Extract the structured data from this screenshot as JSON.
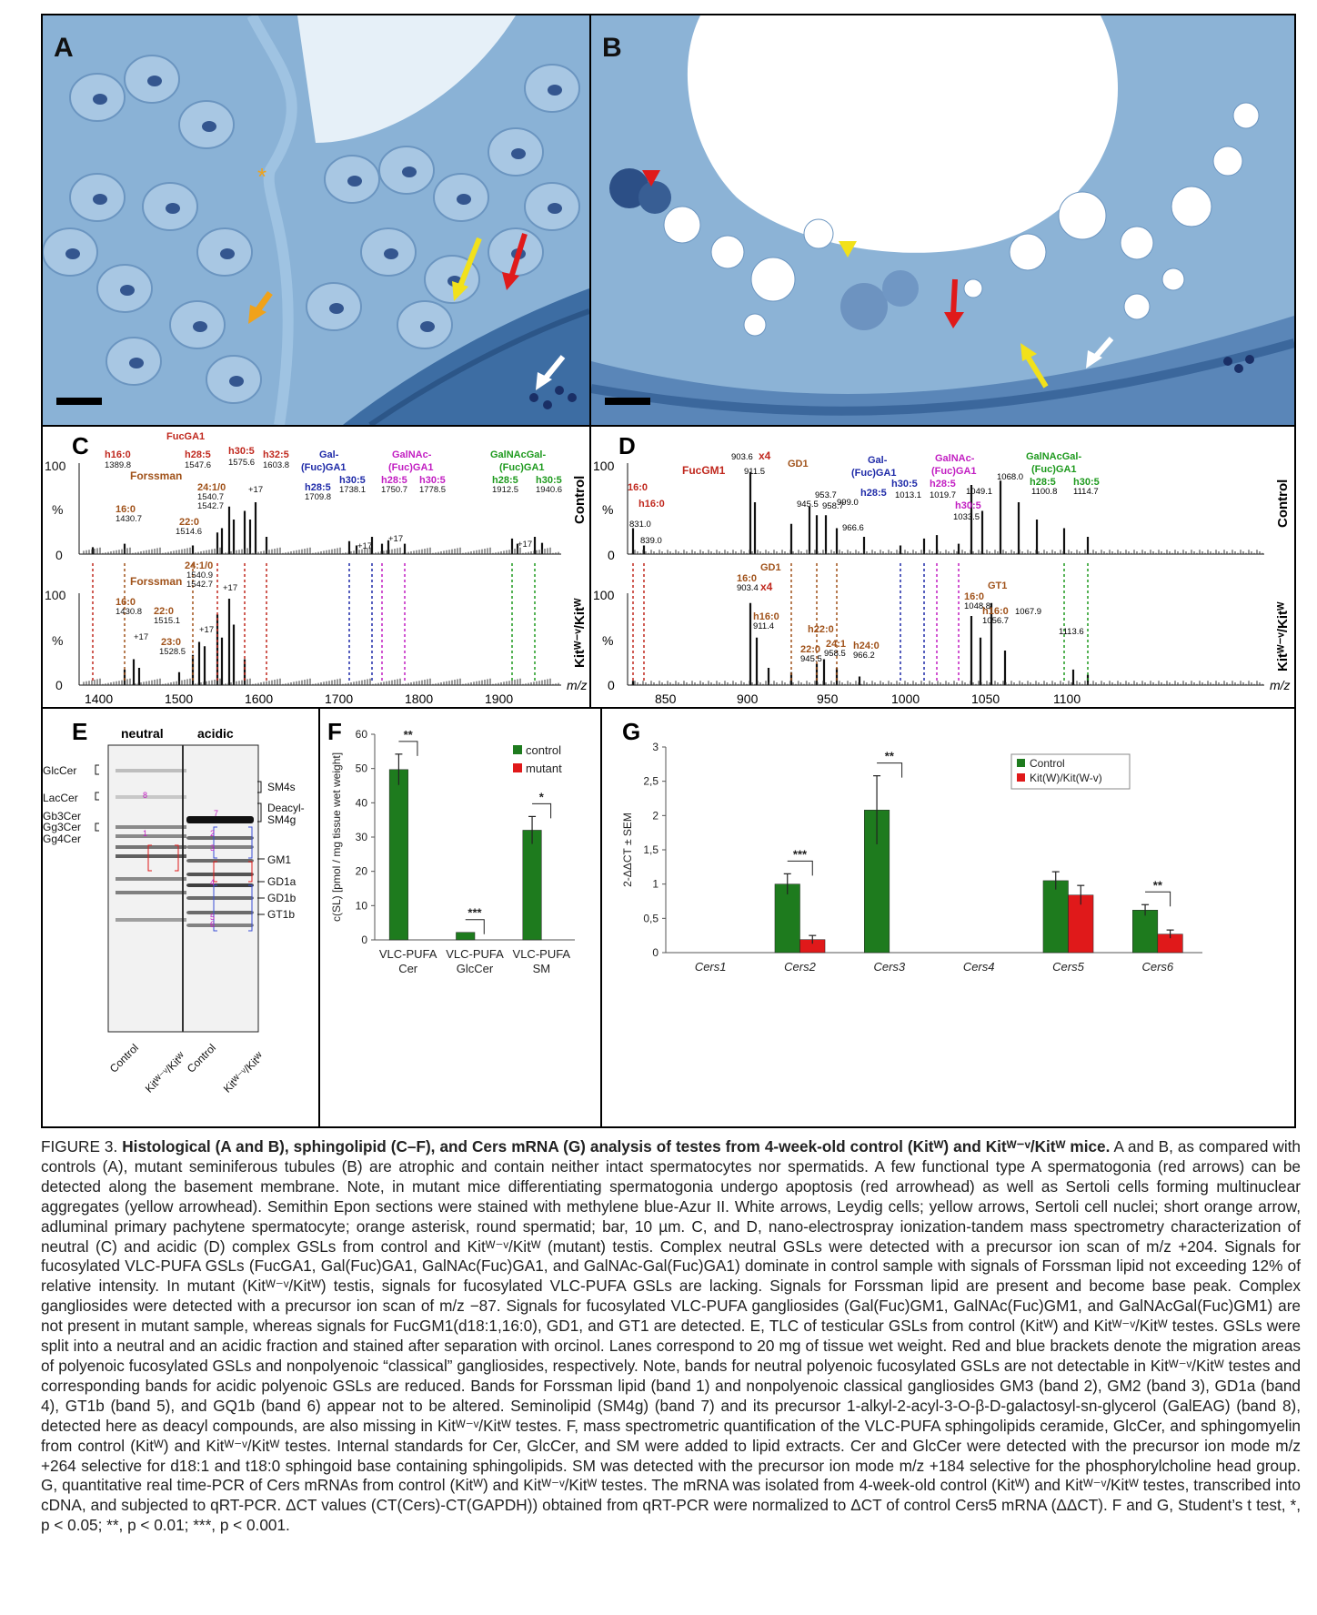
{
  "panels": {
    "A": {
      "label": "A"
    },
    "B": {
      "label": "B"
    },
    "C": {
      "label": "C",
      "top_label": "Control",
      "bottom_label": "Kitᵂ⁻ᵛ/Kitᵂ",
      "axis_ticks_x": [
        "1400",
        "1500",
        "1600",
        "1700",
        "1800",
        "1900"
      ],
      "y_ticks": [
        "100",
        "%",
        "0"
      ],
      "mz": "m/z",
      "top_annotations": [
        "FucGA1",
        "h16:0",
        "1389.8",
        "h28:5",
        "1547.6",
        "h30:5",
        "1575.6",
        "h32:5",
        "1603.8",
        "Forssman",
        "24:1/0",
        "1540.7",
        "1542.7",
        "16:0",
        "1430.7",
        "22:0",
        "1514.6",
        "Gal-",
        "(Fuc)GA1",
        "h28:5",
        "1709.8",
        "h30:5",
        "1738.1",
        "GalNAc-",
        "(Fuc)GA1",
        "h28:5",
        "1750.7",
        "h30:5",
        "1778.5",
        "GalNAcGal-",
        "(Fuc)GA1",
        "h28:5",
        "1912.5",
        "h30:5",
        "1940.6",
        "+17"
      ],
      "bottom_annotations": [
        "Forssman",
        "24:1/0",
        "1540.9",
        "1542.7",
        "+17",
        "16:0",
        "1430.8",
        "22:0",
        "1515.1",
        "23:0",
        "1528.5"
      ]
    },
    "D": {
      "label": "D",
      "top_label": "Control",
      "bottom_label": "Kitᵂ⁻ᵛ/Kitᵂ",
      "axis_ticks_x": [
        "850",
        "900",
        "950",
        "1000",
        "1050",
        "1100"
      ],
      "y_ticks": [
        "100",
        "%",
        "0"
      ],
      "mz": "m/z",
      "top_annotations": [
        "FucGM1",
        "16:0",
        "h16:0",
        "831.0",
        "839.0",
        "903.6",
        "x4",
        "911.5",
        "GD1",
        "953.7",
        "945.5",
        "958.7",
        "999.0",
        "966.6",
        "Gal-",
        "(Fuc)GA1",
        "h28:5",
        "1013.1",
        "h30:5",
        "GalNAc-",
        "(Fuc)GA1",
        "h28:5",
        "1019.7",
        "1049.1",
        "h30:5",
        "1033.5",
        "1068.0",
        "GalNAcGal-",
        "(Fuc)GA1",
        "h28:5",
        "1100.8",
        "h30:5",
        "1114.7"
      ],
      "bottom_annotations": [
        "GD1",
        "16:0",
        "903.4",
        "x4",
        "h16:0",
        "911.4",
        "h22:0",
        "22:0",
        "24:1",
        "h24:0",
        "945.5",
        "958.5",
        "966.2",
        "GT1",
        "16:0",
        "1048.8",
        "h16:0",
        "1056.7",
        "1067.9",
        "1113.6"
      ]
    },
    "E": {
      "label": "E",
      "col_neutral": "neutral",
      "col_acidic": "acidic",
      "left_labels": [
        "GlcCer",
        "LacCer",
        "Gb3Cer",
        "Gg3Cer",
        "Gg4Cer"
      ],
      "right_labels": [
        "SM4s",
        "Deacyl-",
        "SM4g",
        "GM1",
        "GD1a",
        "GD1b",
        "GT1b"
      ],
      "lane_labels": [
        "Control",
        "Kitᵂ⁻ᵛ/Kitᵂ",
        "Control",
        "Kitᵂ⁻ᵛ/Kitᵂ"
      ],
      "band_numbers": [
        "8",
        "1",
        "7",
        "2",
        "3",
        "4",
        "5",
        "6"
      ]
    }
  },
  "chart_data": [
    {
      "type": "bar",
      "panel": "F",
      "categories": [
        "VLC-PUFA Cer",
        "VLC-PUFA GlcCer",
        "VLC-PUFA SM"
      ],
      "category_lines": [
        [
          "VLC-PUFA",
          "Cer"
        ],
        [
          "VLC-PUFA",
          "GlcCer"
        ],
        [
          "VLC-PUFA",
          "SM"
        ]
      ],
      "series": [
        {
          "name": "control",
          "values": [
            49.7,
            2.2,
            32.0
          ],
          "errors": [
            4.5,
            0,
            4.0
          ],
          "color": "#1e7b1e"
        },
        {
          "name": "mutant",
          "values": [
            0,
            0,
            0
          ],
          "errors": [
            0,
            0,
            0
          ],
          "color": "#e0191a"
        }
      ],
      "significance": [
        "**",
        "***",
        "*"
      ],
      "ylabel": "c(SL) [pmol / mg tissue wet weight]",
      "yticks": [
        "0",
        "10",
        "20",
        "30",
        "40",
        "50",
        "60"
      ],
      "ylim": [
        0,
        60
      ]
    },
    {
      "type": "bar",
      "panel": "G",
      "categories": [
        "Cers1",
        "Cers2",
        "Cers3",
        "Cers4",
        "Cers5",
        "Cers6"
      ],
      "series": [
        {
          "name": "Control",
          "values": [
            0.0,
            1.0,
            2.08,
            0.0,
            1.05,
            0.62
          ],
          "errors": [
            0,
            0.15,
            0.5,
            0,
            0.13,
            0.08
          ],
          "color": "#1e7b1e"
        },
        {
          "name": "Kit(W)/Kit(W-v)",
          "values": [
            0,
            0.19,
            0,
            0,
            0.84,
            0.27
          ],
          "errors": [
            0,
            0.06,
            0,
            0,
            0.14,
            0.06
          ],
          "color": "#e0191a"
        }
      ],
      "significance": [
        "",
        "***",
        "**",
        "",
        "",
        "**"
      ],
      "ylabel": "2-ΔΔCT ± SEM",
      "yticks": [
        "0",
        "0,5",
        "1",
        "1,5",
        "2",
        "2,5",
        "3"
      ],
      "ylim": [
        0,
        3
      ]
    }
  ],
  "caption": {
    "fig": "FIGURE 3.",
    "title": "Histological (A and B), sphingolipid (C–F), and Cers mRNA (G) analysis of testes from 4-week-old control (Kitᵂ) and Kitᵂ⁻ᵛ/Kitᵂ mice.",
    "body": "A and B, as compared with controls (A), mutant seminiferous tubules (B) are atrophic and contain neither intact spermatocytes nor spermatids. A few functional type A spermatogonia (red arrows) can be detected along the basement membrane. Note, in mutant mice differentiating spermatogonia undergo apoptosis (red arrowhead) as well as Sertoli cells forming multinuclear aggregates (yellow arrowhead). Semithin Epon sections were stained with methylene blue-Azur II. White arrows, Leydig cells; yellow arrows, Sertoli cell nuclei; short orange arrow, adluminal primary pachytene spermatocyte; orange asterisk, round spermatid; bar, 10 µm. C, and D, nano-electrospray ionization-tandem mass spectrometry characterization of neutral (C) and acidic (D) complex GSLs from control and Kitᵂ⁻ᵛ/Kitᵂ (mutant) testis. Complex neutral GSLs were detected with a precursor ion scan of m/z +204. Signals for fucosylated VLC-PUFA GSLs (FucGA1, Gal(Fuc)GA1, GalNAc(Fuc)GA1, and GalNAc-Gal(Fuc)GA1) dominate in control sample with signals of Forssman lipid not exceeding 12% of relative intensity. In mutant (Kitᵂ⁻ᵛ/Kitᵂ) testis, signals for fucosylated VLC-PUFA GSLs are lacking. Signals for Forssman lipid are present and become base peak. Complex gangliosides were detected with a precursor ion scan of m/z −87. Signals for fucosylated VLC-PUFA gangliosides (Gal(Fuc)GM1, GalNAc(Fuc)GM1, and GalNAcGal(Fuc)GM1) are not present in mutant sample, whereas signals for FucGM1(d18:1,16:0), GD1, and GT1 are detected. E, TLC of testicular GSLs from control (Kitᵂ) and Kitᵂ⁻ᵛ/Kitᵂ testes. GSLs were split into a neutral and an acidic fraction and stained after separation with orcinol. Lanes correspond to 20 mg of tissue wet weight. Red and blue brackets denote the migration areas of polyenoic fucosylated GSLs and nonpolyenoic “classical” gangliosides, respectively. Note, bands for neutral polyenoic fucosylated GSLs are not detectable in Kitᵂ⁻ᵛ/Kitᵂ testes and corresponding bands for acidic polyenoic GSLs are reduced. Bands for Forssman lipid (band 1) and nonpolyenoic classical gangliosides GM3 (band 2), GM2 (band 3), GD1a (band 4), GT1b (band 5), and GQ1b (band 6) appear not to be altered. Seminolipid (SM4g) (band 7) and its precursor 1-alkyl-2-acyl-3-O-β-D-galactosyl-sn-glycerol (GalEAG) (band 8), detected here as deacyl compounds, are also missing in Kitᵂ⁻ᵛ/Kitᵂ testes. F, mass spectrometric quantification of the VLC-PUFA sphingolipids ceramide, GlcCer, and sphingomyelin from control (Kitᵂ) and Kitᵂ⁻ᵛ/Kitᵂ testes. Internal standards for Cer, GlcCer, and SM were added to lipid extracts. Cer and GlcCer were detected with the precursor ion mode m/z +264 selective for d18:1 and t18:0 sphingoid base containing sphingolipids. SM was detected with the precursor ion mode m/z +184 selective for the phosphorylcholine head group. G, quantitative real time-PCR of Cers mRNAs from control (Kitᵂ) and Kitᵂ⁻ᵛ/Kitᵂ testes. The mRNA was isolated from 4-week-old control (Kitᵂ) and Kitᵂ⁻ᵛ/Kitᵂ testes, transcribed into cDNA, and subjected to qRT-PCR. ΔCT values (CT(Cers)-CT(GAPDH)) obtained from qRT-PCR were normalized to ΔCT of control Cers5 mRNA (ΔΔCT). F and G, Student’s t test, *, p < 0.05; **, p < 0.01; ***, p < 0.001."
  }
}
